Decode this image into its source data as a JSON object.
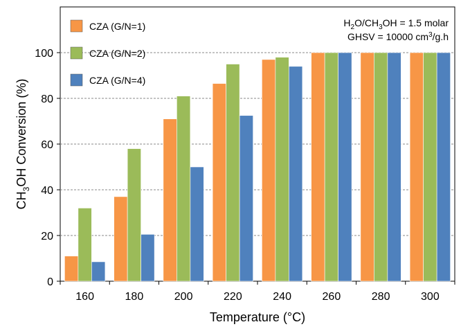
{
  "chart_data": {
    "type": "bar",
    "categories": [
      "160",
      "180",
      "200",
      "220",
      "240",
      "260",
      "280",
      "300"
    ],
    "series": [
      {
        "name": "CZA (G/N=1)",
        "color": "#f79646",
        "values": [
          11,
          37,
          71,
          86.5,
          97,
          100,
          100,
          100
        ]
      },
      {
        "name": "CZA (G/N=2)",
        "color": "#9bbb59",
        "values": [
          32,
          58,
          81,
          95,
          98,
          100,
          100,
          100
        ]
      },
      {
        "name": "CZA (G/N=4)",
        "color": "#4f81bd",
        "values": [
          8.5,
          20.5,
          50,
          72.5,
          94,
          100,
          100,
          100
        ]
      }
    ],
    "xlabel": "Temperature (°C)",
    "ylabel": {
      "pre": "CH",
      "sub": "3",
      "post": "OH Conversion (%)"
    },
    "ylim": [
      0,
      120
    ],
    "yticks": [
      0,
      20,
      40,
      60,
      80,
      100
    ],
    "grid": true,
    "legend_position": "top-left",
    "annotation": {
      "line1": {
        "p1": "H",
        "s1": "2",
        "p2": "O/CH",
        "s2": "3",
        "p3": "OH = 1.5 molar"
      },
      "line2": {
        "p1": "GHSV = 10000 cm",
        "s1": "3",
        "p2": "/g.h"
      }
    }
  }
}
